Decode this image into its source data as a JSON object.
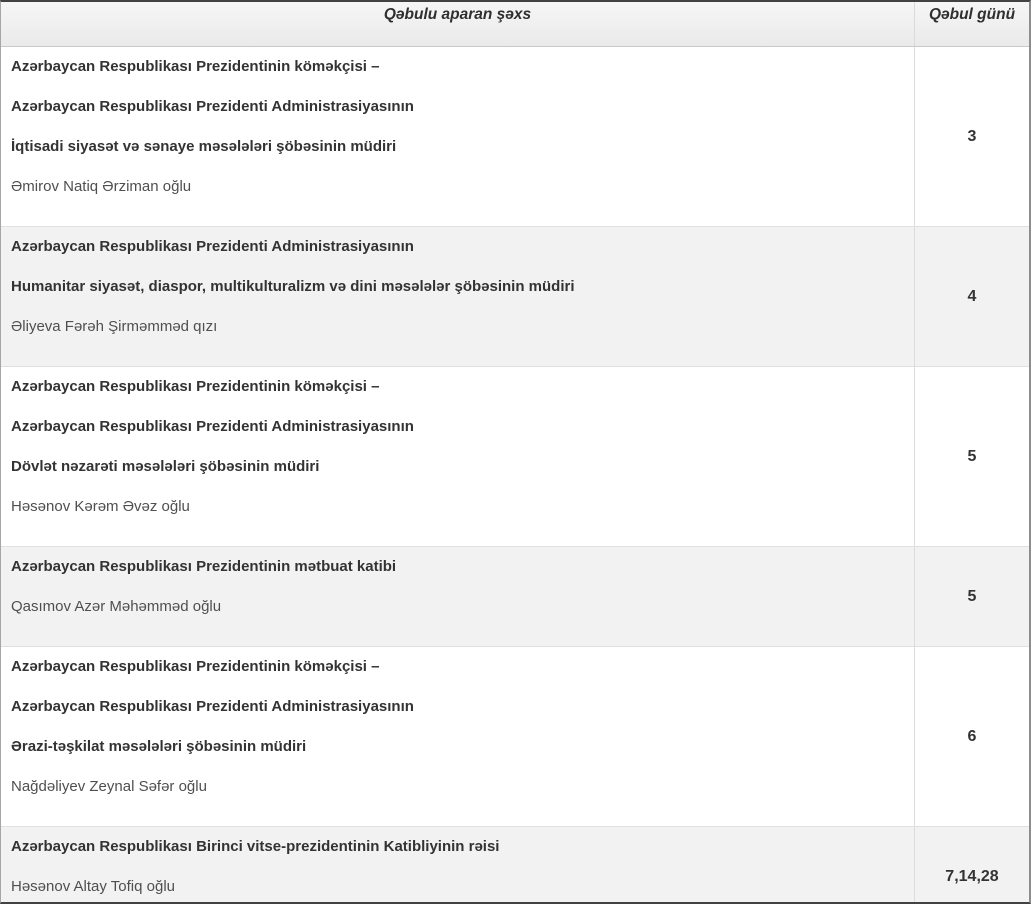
{
  "header": {
    "person_col": "Qəbulu aparan şəxs",
    "day_col": "Qəbul günü"
  },
  "colors": {
    "alt_row_bg": "#f2f2f2",
    "title_text": "#333333",
    "name_text": "#4f4f4f",
    "outer_border": "#424242"
  },
  "table": {
    "rows": [
      {
        "lines": [
          "Azərbaycan Respublikası Prezidentinin köməkçisi –",
          "Azərbaycan Respublikası Prezidenti Administrasiyasının",
          "İqtisadi siyasət və sənaye məsələləri şöbəsinin müdiri"
        ],
        "person": "Əmirov Natiq Ərziman oğlu",
        "day": "3"
      },
      {
        "lines": [
          "Azərbaycan Respublikası Prezidenti Administrasiyasının",
          "Humanitar siyasət, diaspor, multikulturalizm və dini məsələlər şöbəsinin müdiri"
        ],
        "person": "Əliyeva Fərəh Şirməmməd qızı",
        "day": "4"
      },
      {
        "lines": [
          "Azərbaycan Respublikası Prezidentinin köməkçisi –",
          "Azərbaycan Respublikası Prezidenti Administrasiyasının",
          "Dövlət nəzarəti məsələləri şöbəsinin müdiri"
        ],
        "person": "Həsənov Kərəm Əvəz oğlu",
        "day": "5"
      },
      {
        "lines": [
          "Azərbaycan Respublikası Prezidentinin mətbuat katibi"
        ],
        "person": "Qasımov Azər Məhəmməd oğlu",
        "day": "5"
      },
      {
        "lines": [
          "Azərbaycan Respublikası Prezidentinin köməkçisi –",
          "Azərbaycan Respublikası Prezidenti Administrasiyasının",
          "Ərazi-təşkilat məsələləri şöbəsinin müdiri"
        ],
        "person": "Nağdəliyev Zeynal Səfər oğlu",
        "day": "6"
      },
      {
        "lines": [
          "Azərbaycan Respublikası Birinci vitse-prezidentinin Katibliyinin rəisi"
        ],
        "person": "Həsənov Altay Tofiq oğlu",
        "day": "7,14,28"
      }
    ]
  }
}
